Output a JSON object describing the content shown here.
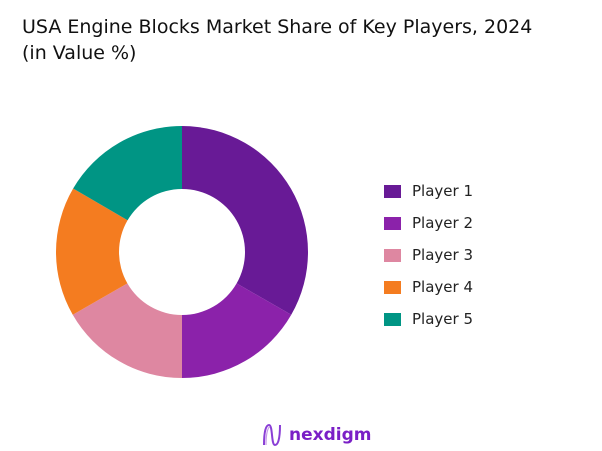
{
  "chart_data": {
    "type": "pie",
    "variant": "donut",
    "title": "USA Engine Blocks Market Share of Key Players, 2024",
    "subtitle": "(in Value %)",
    "categories": [
      "Player 1",
      "Player 2",
      "Player 3",
      "Player 4",
      "Player 5"
    ],
    "values": [
      33.3,
      16.7,
      16.7,
      16.7,
      16.6
    ],
    "colors": [
      "#681a96",
      "#8b22aa",
      "#de87a1",
      "#f47c20",
      "#009584"
    ],
    "legend_position": "right"
  },
  "brand": {
    "name": "nexdigm",
    "color": "#7a1fc6"
  }
}
